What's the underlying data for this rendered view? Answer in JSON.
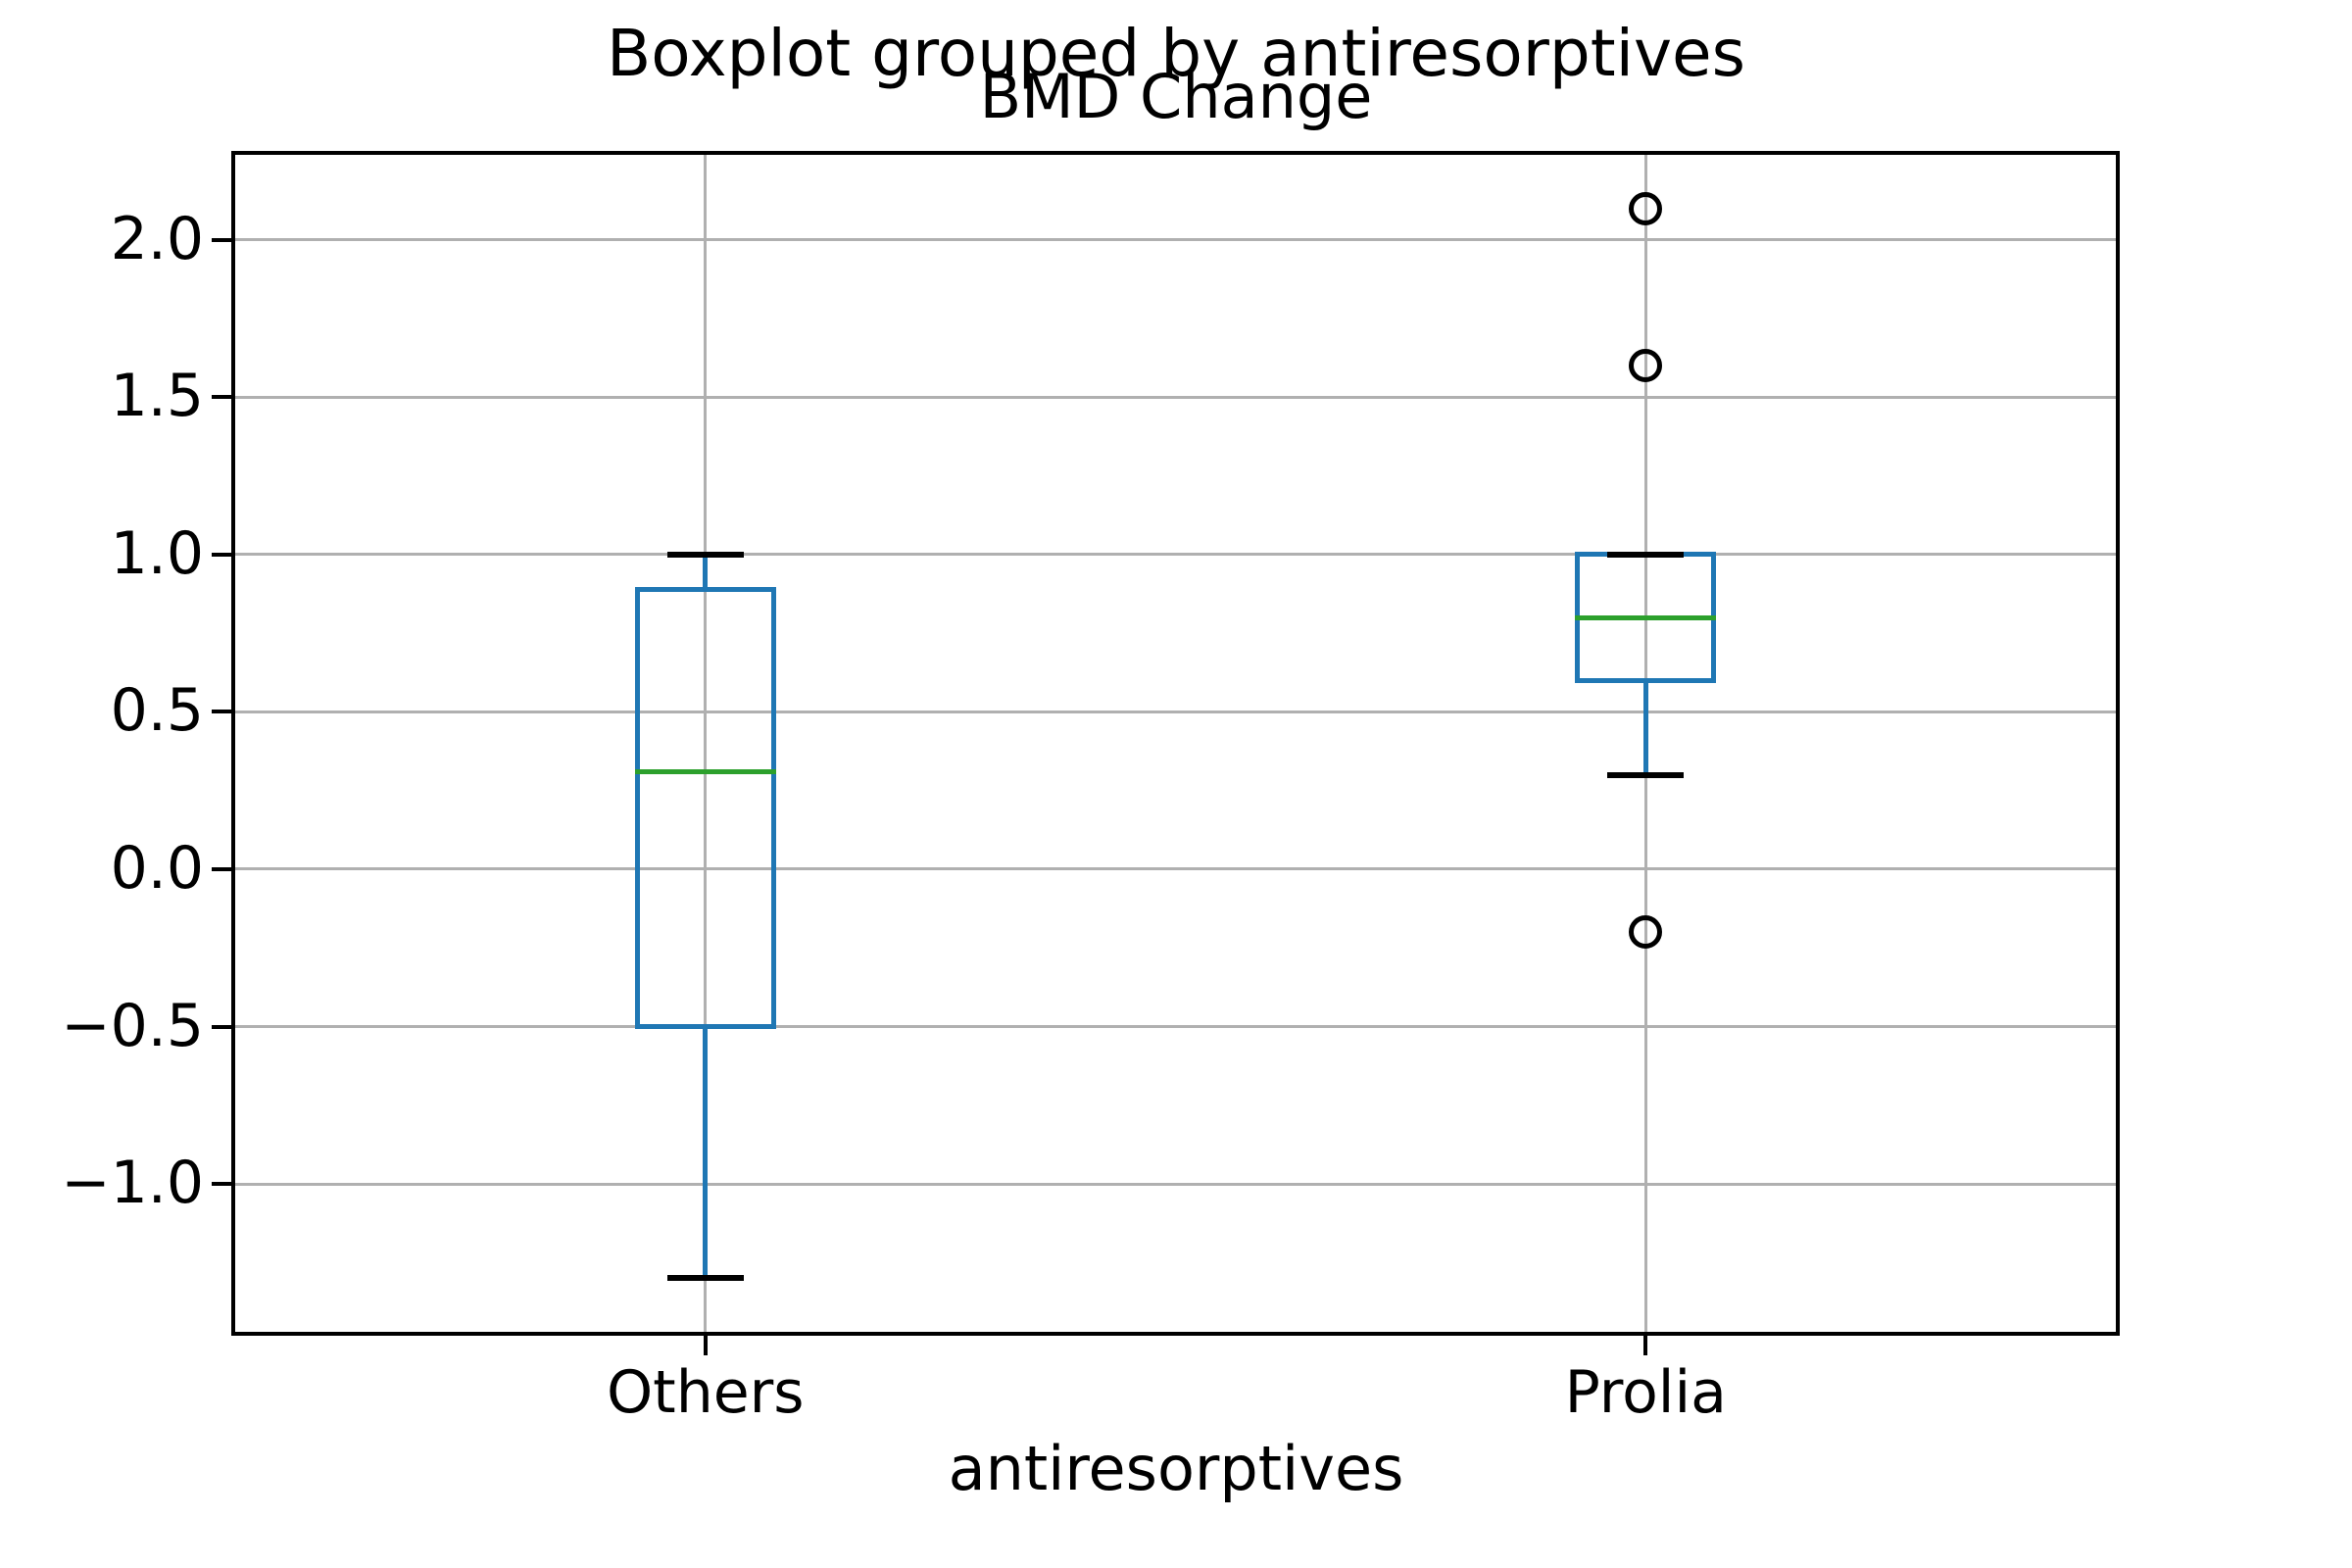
{
  "chart_data": {
    "type": "boxplot",
    "suptitle": "Boxplot grouped by antiresorptives",
    "title": "BMD Change",
    "xlabel": "antiresorptives",
    "ylabel": "",
    "categories": [
      "Others",
      "Prolia"
    ],
    "series": [
      {
        "name": "Others",
        "whisker_low": -1.3,
        "q1": -0.5,
        "median": 0.31,
        "q3": 0.89,
        "whisker_high": 1.0,
        "outliers": []
      },
      {
        "name": "Prolia",
        "whisker_low": 0.3,
        "q1": 0.6,
        "median": 0.8,
        "q3": 1.0,
        "whisker_high": 1.0,
        "outliers": [
          2.1,
          1.6,
          -0.2
        ]
      }
    ],
    "xlim": [
      0.5,
      2.5
    ],
    "ylim": [
      -1.47,
      2.27
    ],
    "yticks": [
      2.0,
      1.5,
      1.0,
      0.5,
      0.0,
      -0.5,
      -1.0
    ],
    "ytick_labels": [
      "2.0",
      "1.5",
      "1.0",
      "0.5",
      "0.0",
      "−0.5",
      "−1.0"
    ],
    "grid": true,
    "legend": false,
    "colors": {
      "box": "#1f77b4",
      "median": "#2ca02c",
      "grid": "#b0b0b0",
      "caps_and_fliers": "#000000",
      "spines": "#000000",
      "text": "#000000"
    }
  }
}
